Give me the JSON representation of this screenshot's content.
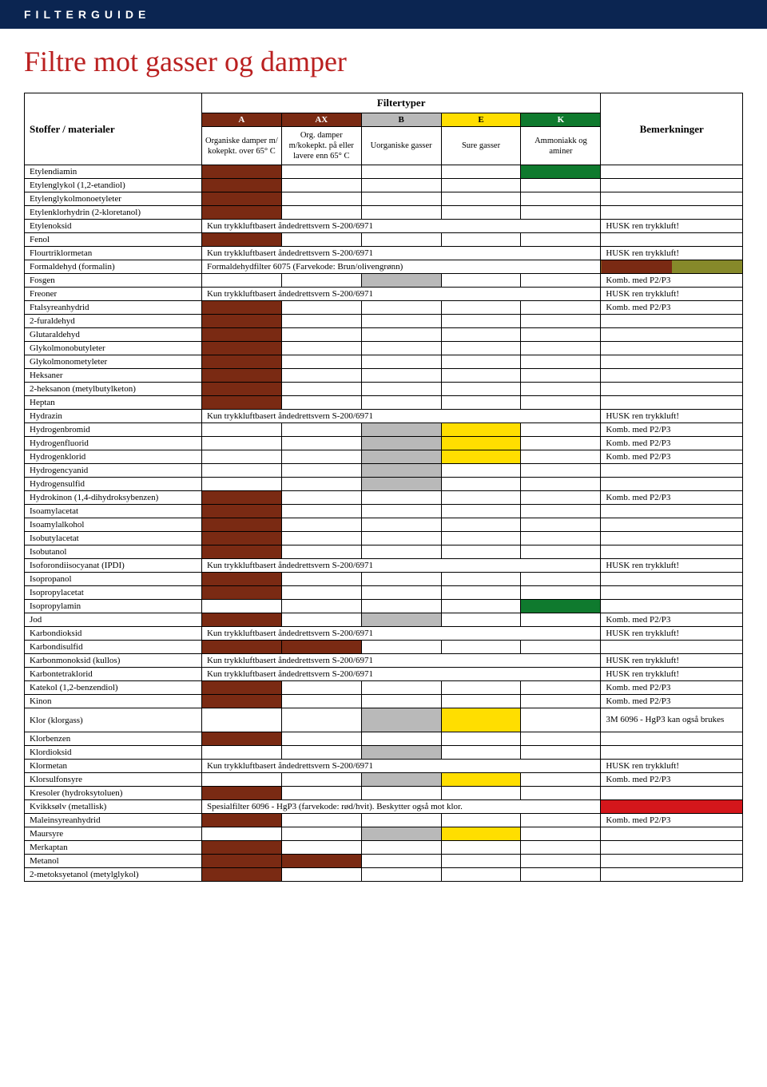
{
  "header": {
    "text": "FILTERGUIDE"
  },
  "title": "Filtre mot gasser og damper",
  "colors": {
    "A": "#7a2a13",
    "AX": "#7a2a13",
    "B": "#b9b9b9",
    "E": "#ffde00",
    "K": "#0f7a2e",
    "olive": "#86892a",
    "red": "#d4161b",
    "navy": "#0b2551",
    "titleRed": "#ba2020"
  },
  "tableHeader": {
    "stoffer": "Stoffer / materialer",
    "filtertyper": "Filtertyper",
    "bemerk": "Bemerkninger",
    "cols": [
      {
        "code": "A",
        "desc": "Organiske damper m/ kokepkt. over 65° C"
      },
      {
        "code": "AX",
        "desc": "Org. damper m/kokepkt. på eller lavere enn 65° C"
      },
      {
        "code": "B",
        "desc": "Uorganiske gasser"
      },
      {
        "code": "E",
        "desc": "Sure gasser"
      },
      {
        "code": "K",
        "desc": "Ammoniakk og aminer"
      }
    ]
  },
  "notes": {
    "trykkluft": "Kun trykkluftbasert åndedrettsvern S-200/6971",
    "formaldehyd": "Formaldehydfilter 6075 (Farvekode: Brun/olivengrønn)",
    "kvikksolv": "Spesialfilter 6096 - HgP3 (farvekode: rød/hvit). Beskytter også mot klor."
  },
  "remarks": {
    "husk": "HUSK ren trykkluft!",
    "komb": "Komb. med P2/P3",
    "klor": "3M 6096 - HgP3 kan også brukes"
  },
  "rows": [
    {
      "name": "Etylendiamin",
      "fill": [
        "A",
        "K"
      ]
    },
    {
      "name": "Etylenglykol (1,2-etandiol)",
      "fill": [
        "A"
      ]
    },
    {
      "name": "Etylenglykolmonoetyleter",
      "fill": [
        "A"
      ]
    },
    {
      "name": "Etylenklorhydrin (2-kloretanol)",
      "fill": [
        "A"
      ]
    },
    {
      "name": "Etylenoksid",
      "note": "trykkluft",
      "remark": "husk"
    },
    {
      "name": "Fenol",
      "fill": [
        "A"
      ]
    },
    {
      "name": "Flourtriklormetan",
      "note": "trykkluft",
      "remark": "husk"
    },
    {
      "name": "Formaldehyd (formalin)",
      "note": "formaldehyd",
      "remarkFill": [
        "A",
        "olive"
      ]
    },
    {
      "name": "Fosgen",
      "fill": [
        "B"
      ],
      "remark": "komb"
    },
    {
      "name": "Freoner",
      "note": "trykkluft",
      "remark": "husk"
    },
    {
      "name": "Ftalsyreanhydrid",
      "fill": [
        "A"
      ],
      "remark": "komb"
    },
    {
      "name": "2-furaldehyd",
      "fill": [
        "A"
      ]
    },
    {
      "name": "Glutaraldehyd",
      "fill": [
        "A"
      ]
    },
    {
      "name": "Glykolmonobutyleter",
      "fill": [
        "A"
      ]
    },
    {
      "name": "Glykolmonometyleter",
      "fill": [
        "A"
      ]
    },
    {
      "name": "Heksaner",
      "fill": [
        "A"
      ]
    },
    {
      "name": "2-heksanon (metylbutylketon)",
      "fill": [
        "A"
      ]
    },
    {
      "name": "Heptan",
      "fill": [
        "A"
      ]
    },
    {
      "name": "Hydrazin",
      "note": "trykkluft",
      "remark": "husk"
    },
    {
      "name": "Hydrogenbromid",
      "fill": [
        "B",
        "E"
      ],
      "remark": "komb"
    },
    {
      "name": "Hydrogenfluorid",
      "fill": [
        "B",
        "E"
      ],
      "remark": "komb"
    },
    {
      "name": "Hydrogenklorid",
      "fill": [
        "B",
        "E"
      ],
      "remark": "komb"
    },
    {
      "name": "Hydrogencyanid",
      "fill": [
        "B"
      ]
    },
    {
      "name": "Hydrogensulfid",
      "fill": [
        "B"
      ]
    },
    {
      "name": "Hydrokinon (1,4-dihydroksybenzen)",
      "fill": [
        "A"
      ],
      "remark": "komb"
    },
    {
      "name": "Isoamylacetat",
      "fill": [
        "A"
      ]
    },
    {
      "name": "Isoamylalkohol",
      "fill": [
        "A"
      ]
    },
    {
      "name": "Isobutylacetat",
      "fill": [
        "A"
      ]
    },
    {
      "name": "Isobutanol",
      "fill": [
        "A"
      ]
    },
    {
      "name": "Isoforondiisocyanat (IPDI)",
      "note": "trykkluft",
      "remark": "husk"
    },
    {
      "name": "Isopropanol",
      "fill": [
        "A"
      ]
    },
    {
      "name": "Isopropylacetat",
      "fill": [
        "A"
      ]
    },
    {
      "name": "Isopropylamin",
      "fill": [
        "K"
      ]
    },
    {
      "name": "Jod",
      "fill": [
        "A",
        "B"
      ],
      "remark": "komb"
    },
    {
      "name": "Karbondioksid",
      "note": "trykkluft",
      "remark": "husk"
    },
    {
      "name": "Karbondisulfid",
      "fill": [
        "A",
        "AX"
      ]
    },
    {
      "name": "Karbonmonoksid (kullos)",
      "note": "trykkluft",
      "remark": "husk"
    },
    {
      "name": "Karbontetraklorid",
      "note": "trykkluft",
      "remark": "husk"
    },
    {
      "name": "Katekol (1,2-benzendiol)",
      "fill": [
        "A"
      ],
      "remark": "komb"
    },
    {
      "name": "Kinon",
      "fill": [
        "A"
      ],
      "remark": "komb"
    },
    {
      "name": "Klor (klorgass)",
      "fill": [
        "B",
        "E"
      ],
      "remark": "klor",
      "tallRemark": true
    },
    {
      "name": "Klorbenzen",
      "fill": [
        "A"
      ]
    },
    {
      "name": "Klordioksid",
      "fill": [
        "B"
      ]
    },
    {
      "name": "Klormetan",
      "note": "trykkluft",
      "remark": "husk"
    },
    {
      "name": "Klorsulfonsyre",
      "fill": [
        "B",
        "E"
      ],
      "remark": "komb"
    },
    {
      "name": "Kresoler (hydroksytoluen)",
      "fill": [
        "A"
      ]
    },
    {
      "name": "Kvikksølv (metallisk)",
      "note": "kvikksolv",
      "remarkFill": [
        "red"
      ]
    },
    {
      "name": "Maleinsyreanhydrid",
      "fill": [
        "A"
      ],
      "remark": "komb"
    },
    {
      "name": "Maursyre",
      "fill": [
        "B",
        "E"
      ]
    },
    {
      "name": "Merkaptan",
      "fill": [
        "A"
      ]
    },
    {
      "name": "Metanol",
      "fill": [
        "A",
        "AX"
      ]
    },
    {
      "name": "2-metoksyetanol (metylglykol)",
      "fill": [
        "A"
      ]
    }
  ]
}
